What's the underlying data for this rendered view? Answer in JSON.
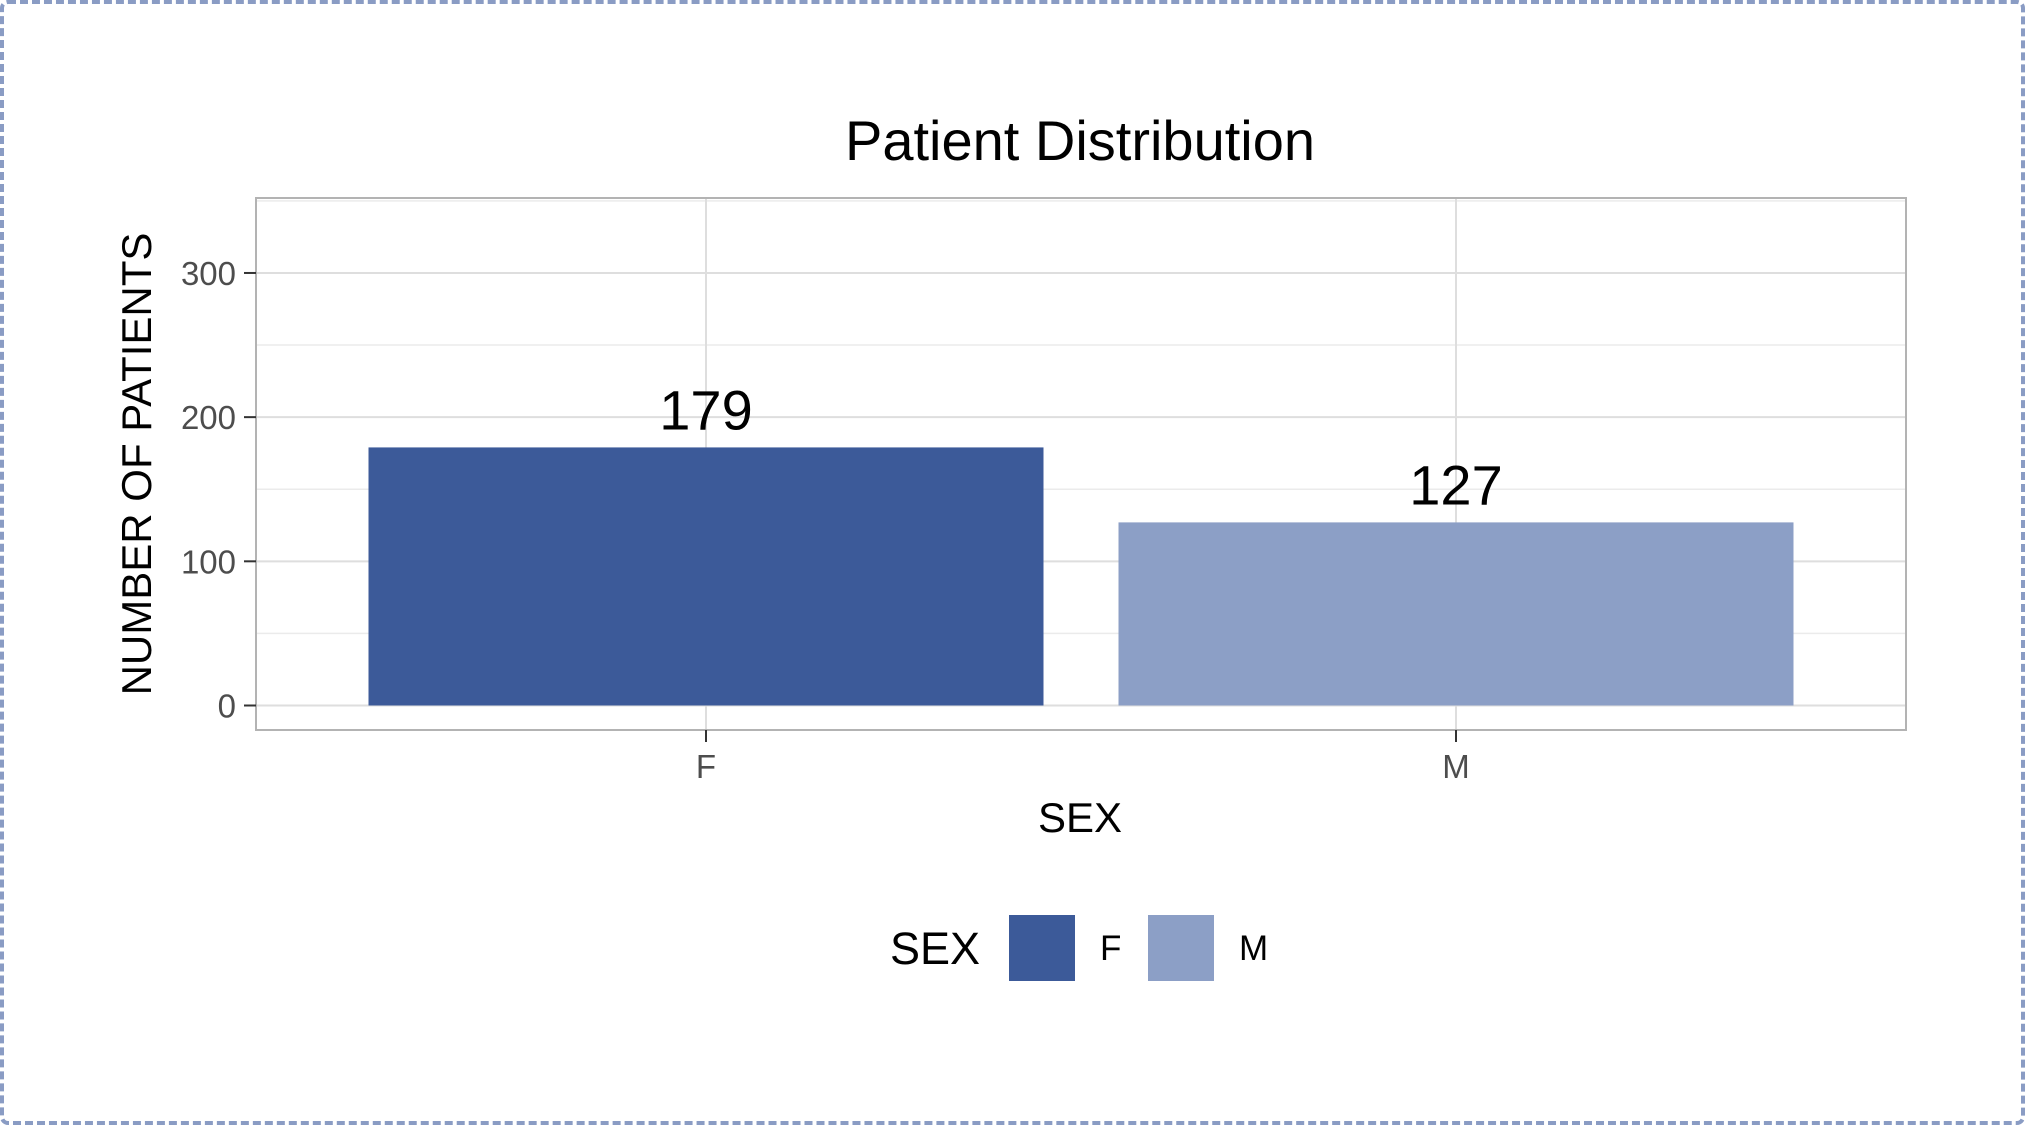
{
  "chart_data": {
    "type": "bar",
    "title": "Patient Distribution",
    "xlabel": "SEX",
    "ylabel": "NUMBER OF PATIENTS",
    "categories": [
      "F",
      "M"
    ],
    "values": [
      179,
      127
    ],
    "data_labels": [
      "179",
      "127"
    ],
    "ylim": [
      -17,
      352
    ],
    "yticks": [
      0,
      100,
      200,
      300
    ],
    "ytick_labels": [
      "0",
      "100",
      "200",
      "300"
    ],
    "grid": true,
    "legend": {
      "title": "SEX",
      "position": "bottom",
      "entries": [
        {
          "label": "F",
          "color": "#3c5a99"
        },
        {
          "label": "M",
          "color": "#8c9fc6"
        }
      ]
    },
    "colors": [
      "#3c5a99",
      "#8c9fc6"
    ]
  }
}
